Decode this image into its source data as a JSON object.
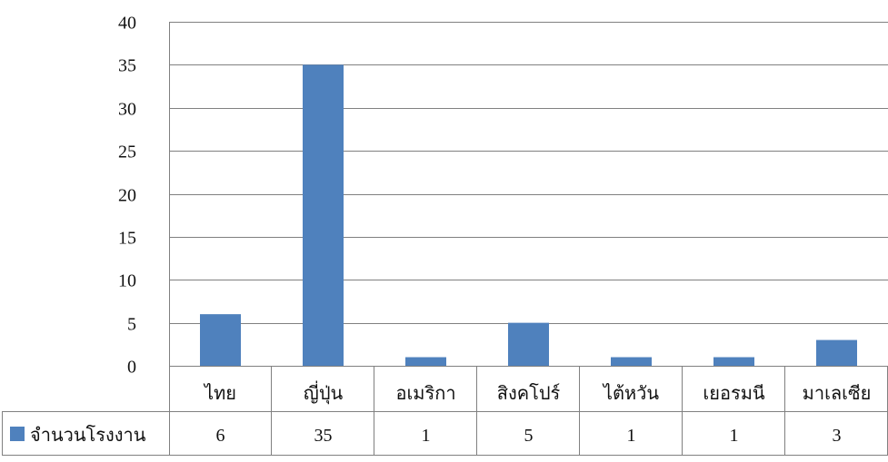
{
  "chart_data": {
    "type": "bar",
    "title": "",
    "xlabel": "",
    "ylabel": "",
    "ylim": [
      0,
      40
    ],
    "yticks": [
      0,
      5,
      10,
      15,
      20,
      25,
      30,
      35,
      40
    ],
    "grid": true,
    "legend_position": "data-table-left",
    "categories": [
      "ไทย",
      "ญี่ปุ่น",
      "อเมริกา",
      "สิงคโปร์",
      "ไต้หวัน",
      "เยอรมนี",
      "มาเลเซีย"
    ],
    "series": [
      {
        "name": "จำนวนโรงงาน",
        "values": [
          6,
          35,
          1,
          5,
          1,
          1,
          3
        ],
        "color": "#4f81bd"
      }
    ],
    "data_table": true
  },
  "colors": {
    "bar": "#4f81bd",
    "gridline": "#808080",
    "axis": "#808080",
    "text": "#111111"
  }
}
